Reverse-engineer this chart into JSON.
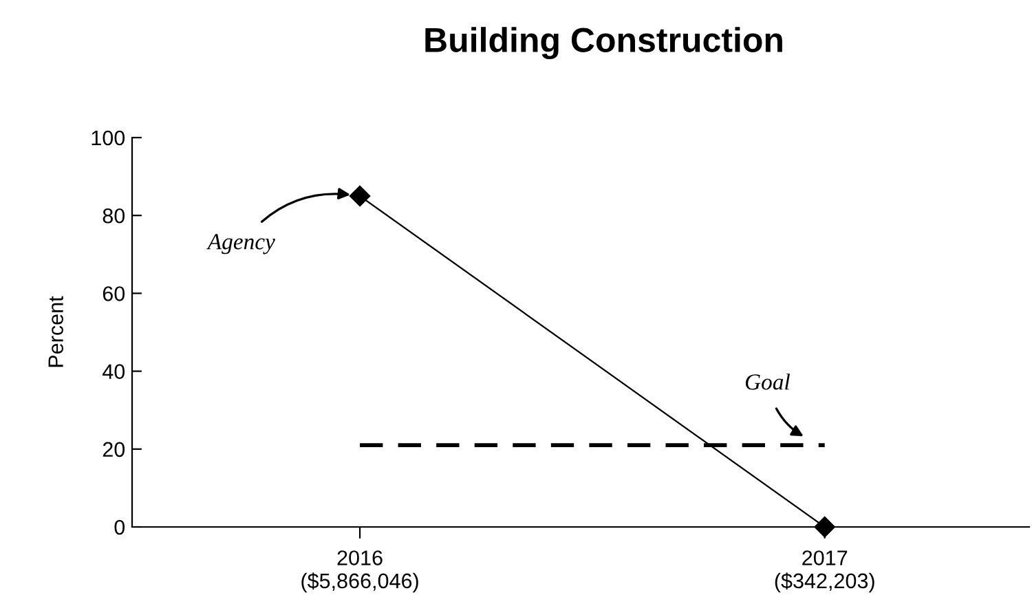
{
  "chart_data": {
    "type": "line",
    "title": "Building Construction",
    "ylabel": "Percent",
    "categories": [
      "2016\n($5,866,046)",
      "2017\n($342,203)"
    ],
    "ylim": [
      0,
      100
    ],
    "yticks": [
      0,
      20,
      40,
      60,
      80,
      100
    ],
    "grid": false,
    "legend": false,
    "series": [
      {
        "name": "Agency",
        "color": "#000000",
        "values": [
          85,
          0
        ],
        "marker": "diamond",
        "line_style": "solid"
      },
      {
        "name": "Goal",
        "color": "#000000",
        "values": [
          21,
          21
        ],
        "marker": "none",
        "line_style": "dashed"
      }
    ]
  }
}
